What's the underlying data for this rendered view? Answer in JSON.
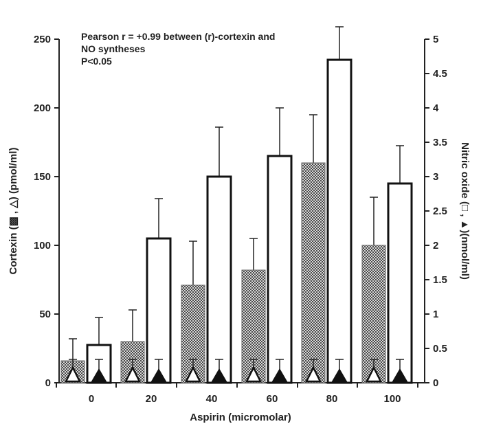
{
  "chart_data": {
    "type": "bar",
    "categories": [
      "0",
      "20",
      "40",
      "60",
      "80",
      "100"
    ],
    "xlabel": "Aspirin (micromolar)",
    "ylabel_left": "Cortexin (▩ , △) (pmol/ml)",
    "ylabel_right": "Nitric oxide (□ , ▲)(nmol/ml)",
    "ylim_left": [
      0,
      250
    ],
    "ylim_right": [
      0,
      5
    ],
    "yticks_left": [
      "0",
      "50",
      "100",
      "150",
      "200",
      "250"
    ],
    "yticks_right": [
      "0",
      "0.5",
      "1",
      "1.5",
      "2",
      "2.5",
      "3",
      "3.5",
      "4",
      "4.5",
      "5"
    ],
    "annotation": [
      "Pearson r = +0.99 between (r)-cortexin and",
      "NO syntheses",
      "P<0.05"
    ],
    "series": [
      {
        "key": "cortexin_checked",
        "axis": "left",
        "values": [
          16,
          30,
          71,
          82,
          160,
          100
        ],
        "errors": [
          16,
          23,
          32,
          23,
          35,
          35
        ],
        "color": "#555555"
      },
      {
        "key": "nitric_oxide_open",
        "axis": "right",
        "values": [
          0.55,
          2.1,
          3.0,
          3.3,
          4.7,
          2.9
        ],
        "errors": [
          0.4,
          0.58,
          0.72,
          0.7,
          0.48,
          0.55
        ],
        "color": "#111111"
      },
      {
        "key": "cortexin_open_triangle",
        "axis": "left",
        "values": [
          6,
          6,
          6,
          6,
          6,
          6
        ],
        "errors": [
          11,
          11,
          11,
          11,
          11,
          11
        ],
        "color": "#111111"
      },
      {
        "key": "nitric_oxide_filled_triangle",
        "axis": "right",
        "values": [
          0.12,
          0.12,
          0.12,
          0.12,
          0.12,
          0.12
        ],
        "errors": [
          0.22,
          0.22,
          0.22,
          0.22,
          0.22,
          0.22
        ],
        "color": "#111111"
      }
    ],
    "grid": false
  }
}
